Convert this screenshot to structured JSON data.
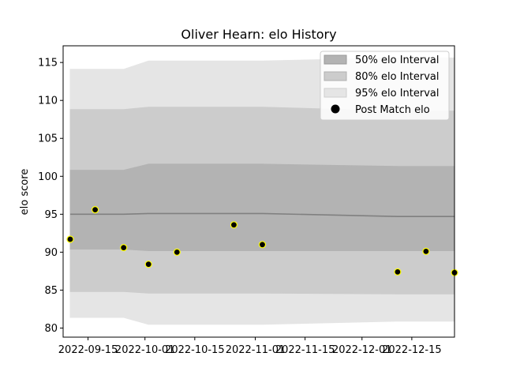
{
  "chart_data": {
    "type": "line",
    "title": "Oliver Hearn: elo History",
    "xlabel": "",
    "ylabel": "elo score",
    "ylim": [
      78.8,
      117.2
    ],
    "xlim": [
      "2022-09-08",
      "2022-12-27"
    ],
    "yticks": [
      80,
      85,
      90,
      95,
      100,
      105,
      110,
      115
    ],
    "xticks": [
      "2022-09-15",
      "2022-10-01",
      "2022-10-15",
      "2022-11-01",
      "2022-11-15",
      "2022-12-01",
      "2022-12-15"
    ],
    "grid": false,
    "legend_position": "top-right",
    "legend": {
      "band50": "50% elo Interval",
      "band80": "80% elo Interval",
      "band95": "95% elo Interval",
      "points": "Post Match elo"
    },
    "colors": {
      "band50": "#b3b3b3",
      "band80": "#cccccc",
      "band95": "#e5e5e5",
      "mean_line": "#808080",
      "point_fill": "#000000",
      "point_edge": "#ffff00"
    },
    "x": [
      "2022-09-10",
      "2022-09-17",
      "2022-09-25",
      "2022-10-02",
      "2022-10-10",
      "2022-10-26",
      "2022-11-03",
      "2022-12-11",
      "2022-12-19",
      "2022-12-27"
    ],
    "mean": [
      95.0,
      95.0,
      95.0,
      95.1,
      95.1,
      95.1,
      95.1,
      94.7,
      94.7,
      94.7
    ],
    "band50": {
      "lower": [
        90.4,
        90.4,
        90.4,
        90.2,
        90.2,
        90.2,
        90.2,
        90.2,
        90.2,
        90.2
      ],
      "upper": [
        100.8,
        100.8,
        100.8,
        101.6,
        101.6,
        101.6,
        101.6,
        101.3,
        101.3,
        101.3
      ]
    },
    "band80": {
      "lower": [
        84.8,
        84.8,
        84.8,
        84.6,
        84.6,
        84.6,
        84.6,
        84.5,
        84.5,
        84.5
      ],
      "upper": [
        108.8,
        108.8,
        108.8,
        109.1,
        109.1,
        109.1,
        109.1,
        108.6,
        108.6,
        108.6
      ]
    },
    "band95": {
      "lower": [
        81.4,
        81.4,
        81.4,
        80.5,
        80.5,
        80.5,
        80.5,
        80.9,
        80.9,
        80.9
      ],
      "upper": [
        114.1,
        114.1,
        114.1,
        115.2,
        115.2,
        115.2,
        115.2,
        115.6,
        115.6,
        115.6
      ]
    },
    "post_match": {
      "x": [
        "2022-09-10",
        "2022-09-17",
        "2022-09-25",
        "2022-10-02",
        "2022-10-10",
        "2022-10-26",
        "2022-11-03",
        "2022-12-11",
        "2022-12-19",
        "2022-12-27"
      ],
      "y": [
        91.7,
        95.6,
        90.6,
        88.4,
        90.0,
        93.6,
        91.0,
        87.4,
        90.1,
        87.3
      ]
    }
  }
}
